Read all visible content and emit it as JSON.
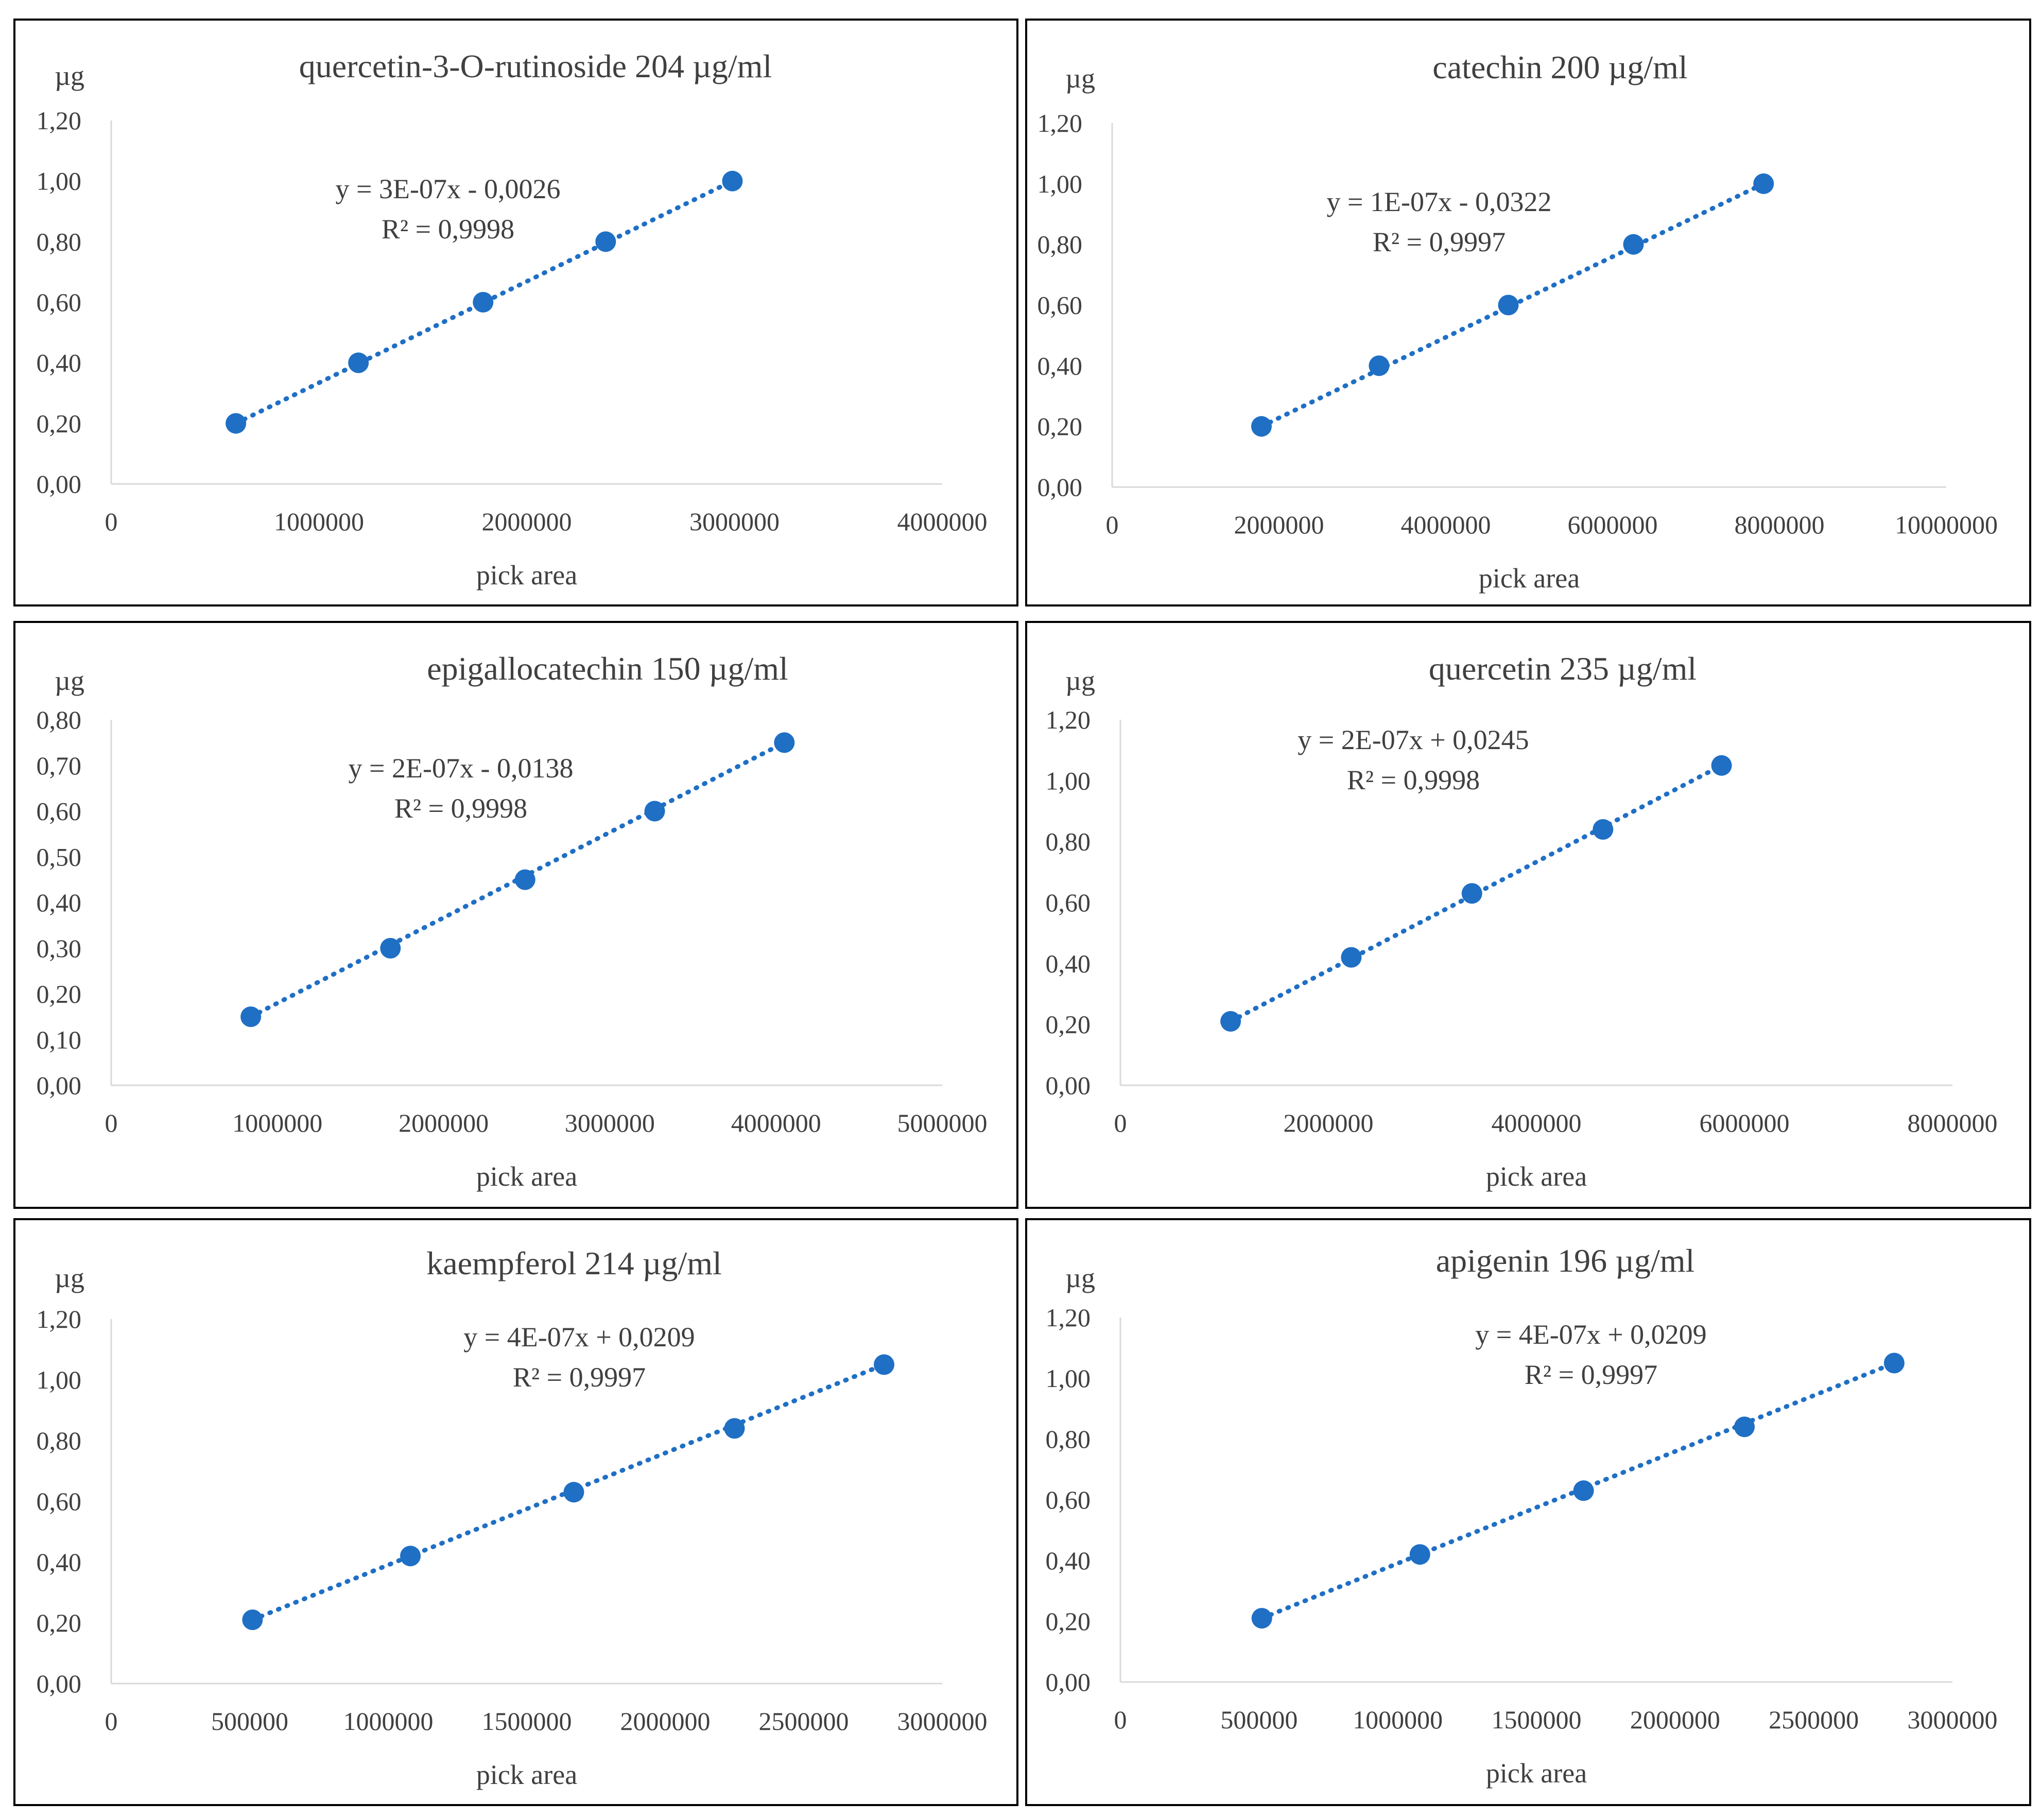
{
  "marker_color": "#1f6fc4",
  "chart_data": [
    {
      "type": "scatter",
      "title": "quercetin-3-O-rutinoside 204 µg/ml",
      "xlabel": "pick area",
      "ylabel": "µg",
      "xlim": [
        0,
        4000000
      ],
      "ylim": [
        0,
        1.2
      ],
      "xticks": [
        0,
        1000000,
        2000000,
        3000000,
        4000000
      ],
      "yticks": [
        0,
        0.2,
        0.4,
        0.6,
        0.8,
        1.0,
        1.2
      ],
      "xtick_labels": [
        "0",
        "1000000",
        "2000000",
        "3000000",
        "4000000"
      ],
      "ytick_labels": [
        "0,00",
        "0,20",
        "0,40",
        "0,60",
        "0,80",
        "1,00",
        "1,20"
      ],
      "x": [
        600000,
        1190000,
        1790000,
        2380000,
        2990000
      ],
      "y": [
        0.2,
        0.4,
        0.6,
        0.8,
        1.0
      ],
      "trendline": {
        "equation": "y = 3E-07x - 0,0026",
        "r2": "R² = 0,9998",
        "x": [
          600000,
          2990000
        ]
      }
    },
    {
      "type": "scatter",
      "title": "catechin 200 µg/ml",
      "xlabel": "pick area",
      "ylabel": "µg",
      "xlim": [
        0,
        10000000
      ],
      "ylim": [
        0,
        1.2
      ],
      "xticks": [
        0,
        2000000,
        4000000,
        6000000,
        8000000,
        10000000
      ],
      "yticks": [
        0,
        0.2,
        0.4,
        0.6,
        0.8,
        1.0,
        1.2
      ],
      "xtick_labels": [
        "0",
        "2000000",
        "4000000",
        "6000000",
        "8000000",
        "10000000"
      ],
      "ytick_labels": [
        "0,00",
        "0,20",
        "0,40",
        "0,60",
        "0,80",
        "1,00",
        "1,20"
      ],
      "x": [
        1790000,
        3200000,
        4750000,
        6250000,
        7810000
      ],
      "y": [
        0.2,
        0.4,
        0.6,
        0.8,
        1.0
      ],
      "trendline": {
        "equation": "y = 1E-07x - 0,0322",
        "r2": "R² = 0,9997",
        "x": [
          1790000,
          7810000
        ]
      }
    },
    {
      "type": "scatter",
      "title": "epigallocatechin 150 µg/ml",
      "xlabel": "pick area",
      "ylabel": "µg",
      "xlim": [
        0,
        5000000
      ],
      "ylim": [
        0,
        0.8
      ],
      "xticks": [
        0,
        1000000,
        2000000,
        3000000,
        4000000,
        5000000
      ],
      "yticks": [
        0,
        0.1,
        0.2,
        0.3,
        0.4,
        0.5,
        0.6,
        0.7,
        0.8
      ],
      "xtick_labels": [
        "0",
        "1000000",
        "2000000",
        "3000000",
        "4000000",
        "5000000"
      ],
      "ytick_labels": [
        "0,00",
        "0,10",
        "0,20",
        "0,30",
        "0,40",
        "0,50",
        "0,60",
        "0,70",
        "0,80"
      ],
      "x": [
        840000,
        1680000,
        2490000,
        3270000,
        4050000
      ],
      "y": [
        0.15,
        0.3,
        0.45,
        0.6,
        0.75
      ],
      "trendline": {
        "equation": "y = 2E-07x - 0,0138",
        "r2": "R² = 0,9998",
        "x": [
          840000,
          4050000
        ]
      }
    },
    {
      "type": "scatter",
      "title": "quercetin 235 µg/ml",
      "xlabel": "pick area",
      "ylabel": "µg",
      "xlim": [
        0,
        8000000
      ],
      "ylim": [
        0,
        1.2
      ],
      "xticks": [
        0,
        2000000,
        4000000,
        6000000,
        8000000
      ],
      "yticks": [
        0,
        0.2,
        0.4,
        0.6,
        0.8,
        1.0,
        1.2
      ],
      "xtick_labels": [
        "0",
        "2000000",
        "4000000",
        "6000000",
        "8000000"
      ],
      "ytick_labels": [
        "0,00",
        "0,20",
        "0,40",
        "0,60",
        "0,80",
        "1,00",
        "1,20"
      ],
      "x": [
        1060000,
        2220000,
        3380000,
        4640000,
        5780000
      ],
      "y": [
        0.21,
        0.42,
        0.63,
        0.84,
        1.05
      ],
      "trendline": {
        "equation": "y = 2E-07x + 0,0245",
        "r2": "R² = 0,9998",
        "x": [
          1060000,
          5780000
        ]
      }
    },
    {
      "type": "scatter",
      "title": "kaempferol 214 µg/ml",
      "xlabel": "pick area",
      "ylabel": "µg",
      "xlim": [
        0,
        3000000
      ],
      "ylim": [
        0,
        1.2
      ],
      "xticks": [
        0,
        500000,
        1000000,
        1500000,
        2000000,
        2500000,
        3000000
      ],
      "yticks": [
        0,
        0.2,
        0.4,
        0.6,
        0.8,
        1.0,
        1.2
      ],
      "xtick_labels": [
        "0",
        "500000",
        "1000000",
        "1500000",
        "2000000",
        "2500000",
        "3000000"
      ],
      "ytick_labels": [
        "0,00",
        "0,20",
        "0,40",
        "0,60",
        "0,80",
        "1,00",
        "1,20"
      ],
      "x": [
        510000,
        1080000,
        1670000,
        2250000,
        2790000
      ],
      "y": [
        0.21,
        0.42,
        0.63,
        0.84,
        1.05
      ],
      "trendline": {
        "equation": "y = 4E-07x + 0,0209",
        "r2": "R² = 0,9997",
        "x": [
          510000,
          2790000
        ]
      }
    },
    {
      "type": "scatter",
      "title": "apigenin 196 µg/ml",
      "xlabel": "pick area",
      "ylabel": "µg",
      "xlim": [
        0,
        3000000
      ],
      "ylim": [
        0,
        1.2
      ],
      "xticks": [
        0,
        500000,
        1000000,
        1500000,
        2000000,
        2500000,
        3000000
      ],
      "yticks": [
        0,
        0.2,
        0.4,
        0.6,
        0.8,
        1.0,
        1.2
      ],
      "xtick_labels": [
        "0",
        "500000",
        "1000000",
        "1500000",
        "2000000",
        "2500000",
        "3000000"
      ],
      "ytick_labels": [
        "0,00",
        "0,20",
        "0,40",
        "0,60",
        "0,80",
        "1,00",
        "1,20"
      ],
      "x": [
        510000,
        1080000,
        1670000,
        2250000,
        2790000
      ],
      "y": [
        0.21,
        0.42,
        0.63,
        0.84,
        1.05
      ],
      "trendline": {
        "equation": "y = 4E-07x + 0,0209",
        "r2": "R² = 0,9997",
        "x": [
          510000,
          2790000
        ]
      }
    }
  ]
}
